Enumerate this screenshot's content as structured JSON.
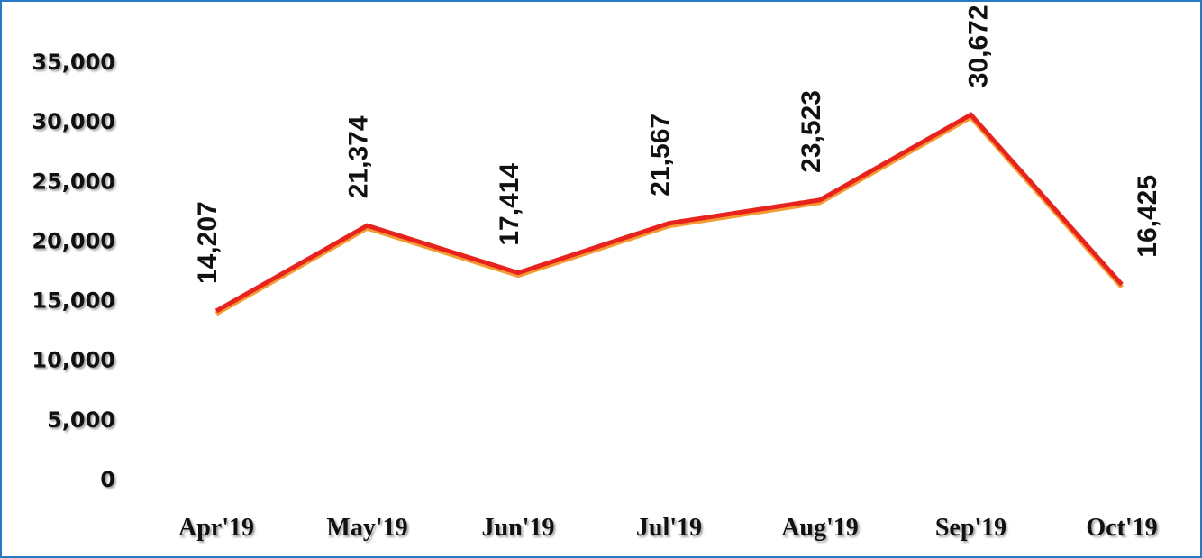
{
  "chart_data": {
    "type": "line",
    "categories": [
      "Apr'19",
      "May'19",
      "Jun'19",
      "Jul'19",
      "Aug'19",
      "Sep'19",
      "Oct'19"
    ],
    "series": [
      {
        "color": "#e8231e",
        "values": [
          14207,
          21374,
          17414,
          21567,
          23523,
          30672,
          16425
        ],
        "value_labels": [
          "14,207",
          "21,374",
          "17,414",
          "21,567",
          "23,523",
          "30,672",
          "16,425"
        ]
      }
    ],
    "ylim": [
      0,
      35000
    ],
    "yticks": [
      0,
      {
        "value": 5000,
        "label": "5,000"
      },
      {
        "value": 10000,
        "label": "10,000"
      },
      {
        "value": 15000,
        "label": "15,000"
      },
      {
        "value": 20000,
        "label": "20,000"
      },
      {
        "value": 25000,
        "label": "25,000"
      },
      {
        "value": 30000,
        "label": "30,000"
      },
      {
        "value": 35000,
        "label": "35,000"
      }
    ],
    "grid": false
  }
}
